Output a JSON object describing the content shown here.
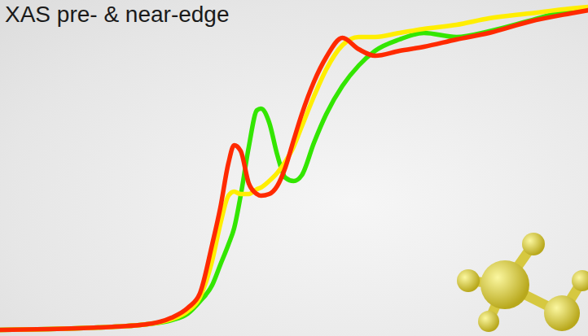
{
  "chart_data": {
    "type": "line",
    "title": "XAS pre- & near-edge",
    "x": [
      0,
      60,
      120,
      180,
      210,
      230,
      245,
      260,
      270,
      280,
      287,
      295,
      305,
      315,
      320,
      330,
      340,
      350,
      360,
      370,
      385,
      400,
      420,
      440,
      460,
      490,
      520,
      560,
      600,
      650,
      700,
      722
    ],
    "series": [
      {
        "color": "#33e600",
        "values": [
          8,
          9,
          11,
          15,
          20,
          28,
          43,
          63,
          88,
          113,
          133,
          173,
          233,
          278,
          280,
          263,
          223,
          195,
          191,
          198,
          238,
          273,
          308,
          333,
          351,
          365,
          373,
          368,
          375,
          388,
          401,
          403
        ]
      },
      {
        "color": "#ffee00",
        "values": [
          8,
          9,
          11,
          15,
          21,
          31,
          48,
          93,
          138,
          173,
          178,
          175,
          175,
          181,
          183,
          191,
          201,
          215,
          233,
          258,
          295,
          328,
          358,
          368,
          368,
          373,
          378,
          383,
          391,
          397,
          403,
          405
        ]
      },
      {
        "color": "#ff2a00",
        "values": [
          8,
          9,
          11,
          15,
          23,
          35,
          53,
          113,
          158,
          213,
          235,
          228,
          188,
          175,
          173,
          175,
          185,
          208,
          241,
          273,
          313,
          343,
          367,
          353,
          345,
          351,
          356,
          365,
          373,
          387,
          397,
          401
        ]
      }
    ],
    "xlim": [
      0,
      722
    ],
    "ylim": [
      0,
      413
    ],
    "tick_labels": false,
    "grid": false
  }
}
